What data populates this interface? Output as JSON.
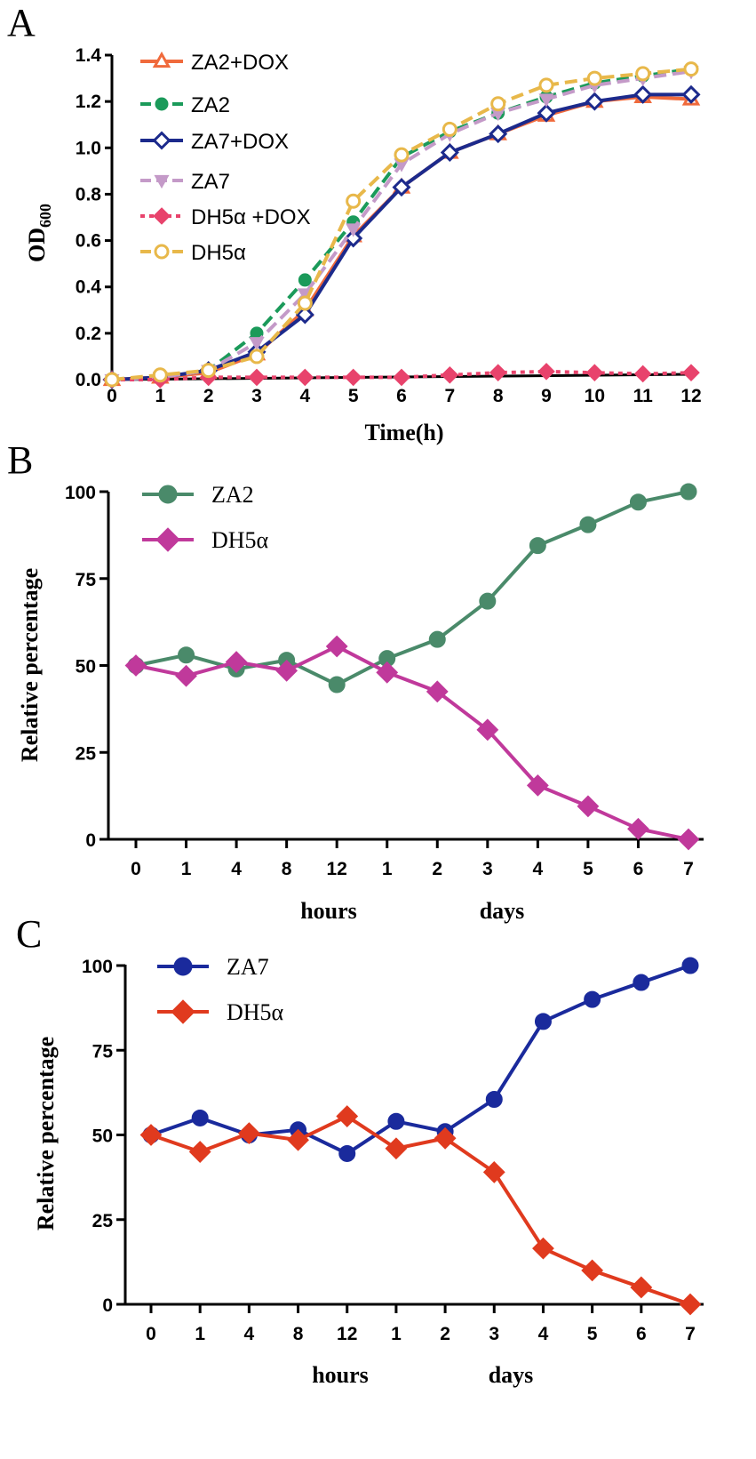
{
  "chart_data": [
    {
      "panel": "A",
      "type": "line",
      "xlabel": "Time(h)",
      "ylabel_main": "OD",
      "ylabel_sub": "600",
      "ylim": [
        0,
        1.4
      ],
      "xlim": [
        0,
        12
      ],
      "x": [
        0,
        1,
        2,
        3,
        4,
        5,
        6,
        7,
        8,
        9,
        10,
        11,
        12
      ],
      "x_tick_labels": [
        "0",
        "1",
        "2",
        "3",
        "4",
        "5",
        "6",
        "7",
        "8",
        "9",
        "10",
        "11",
        "12"
      ],
      "y_ticks": [
        0.0,
        0.2,
        0.4,
        0.6,
        0.8,
        1.0,
        1.2,
        1.4
      ],
      "y_tick_labels": [
        "0.0",
        "0.2",
        "0.4",
        "0.6",
        "0.8",
        "1.0",
        "1.2",
        "1.4"
      ],
      "series": [
        {
          "name": "ZA2+DOX",
          "color": "#f06a3c",
          "marker": "triangle-up-open",
          "dash": "solid",
          "values": [
            0.0,
            0.01,
            0.03,
            0.11,
            0.3,
            0.62,
            0.83,
            0.98,
            1.06,
            1.14,
            1.2,
            1.22,
            1.21
          ]
        },
        {
          "name": "ZA2",
          "color": "#1b9a5a",
          "marker": "circle-filled",
          "dash": "dashed",
          "values": [
            0.0,
            0.01,
            0.04,
            0.2,
            0.43,
            0.68,
            0.96,
            1.07,
            1.15,
            1.22,
            1.28,
            1.31,
            1.34
          ]
        },
        {
          "name": "ZA7+DOX",
          "color": "#1c2a8c",
          "marker": "diamond-open",
          "dash": "solid",
          "values": [
            0.0,
            0.01,
            0.04,
            0.12,
            0.28,
            0.61,
            0.83,
            0.98,
            1.06,
            1.15,
            1.2,
            1.23,
            1.23
          ]
        },
        {
          "name": "ZA7",
          "color": "#c49ac8",
          "marker": "triangle-down-filled",
          "dash": "dashed",
          "values": [
            0.0,
            0.01,
            0.04,
            0.16,
            0.37,
            0.65,
            0.93,
            1.06,
            1.15,
            1.21,
            1.27,
            1.3,
            1.33
          ]
        },
        {
          "name": "DH5α +DOX",
          "color": "#e8436c",
          "marker": "diamond-filled",
          "dash": "dotted",
          "values": [
            0.0,
            0.0,
            0.01,
            0.01,
            0.01,
            0.01,
            0.01,
            0.02,
            0.03,
            0.035,
            0.03,
            0.025,
            0.03
          ]
        },
        {
          "name": "DH5α",
          "color": "#e8b84a",
          "marker": "circle-open",
          "dash": "dashed",
          "values": [
            0.0,
            0.02,
            0.04,
            0.1,
            0.33,
            0.77,
            0.97,
            1.08,
            1.19,
            1.27,
            1.3,
            1.32,
            1.34
          ]
        }
      ]
    },
    {
      "panel": "B",
      "type": "line",
      "ylabel": "Relative percentage",
      "ylim": [
        0,
        100
      ],
      "y_ticks": [
        0,
        25,
        50,
        75,
        100
      ],
      "y_tick_labels": [
        "0",
        "25",
        "50",
        "75",
        "100"
      ],
      "x_tick_labels": [
        "0",
        "1",
        "4",
        "8",
        "12",
        "1",
        "2",
        "3",
        "4",
        "5",
        "6",
        "7"
      ],
      "group_labels": [
        "hours",
        "days"
      ],
      "series": [
        {
          "name": "ZA2",
          "color": "#4a8a6a",
          "marker": "circle-filled",
          "values": [
            50,
            53,
            49,
            51.5,
            44.5,
            52,
            57.5,
            68.5,
            84.5,
            90.5,
            97,
            100
          ]
        },
        {
          "name": "DH5α",
          "color": "#c0399b",
          "marker": "diamond-filled",
          "values": [
            50,
            47,
            51,
            48.5,
            55.5,
            48,
            42.5,
            31.5,
            15.5,
            9.5,
            3,
            0
          ]
        }
      ]
    },
    {
      "panel": "C",
      "type": "line",
      "ylabel": "Relative percentage",
      "ylim": [
        0,
        100
      ],
      "y_ticks": [
        0,
        25,
        50,
        75,
        100
      ],
      "y_tick_labels": [
        "0",
        "25",
        "50",
        "75",
        "100"
      ],
      "x_tick_labels": [
        "0",
        "1",
        "4",
        "8",
        "12",
        "1",
        "2",
        "3",
        "4",
        "5",
        "6",
        "7"
      ],
      "group_labels": [
        "hours",
        "days"
      ],
      "series": [
        {
          "name": "ZA7",
          "color": "#1a2a9c",
          "marker": "circle-filled",
          "values": [
            50,
            55,
            50,
            51.5,
            44.5,
            54,
            51,
            60.5,
            83.5,
            90,
            95,
            100
          ]
        },
        {
          "name": "DH5α",
          "color": "#e03a1e",
          "marker": "diamond-filled",
          "values": [
            50,
            45,
            50.5,
            48.5,
            55.5,
            46,
            49,
            39,
            16.5,
            10,
            5,
            0
          ]
        }
      ]
    }
  ]
}
